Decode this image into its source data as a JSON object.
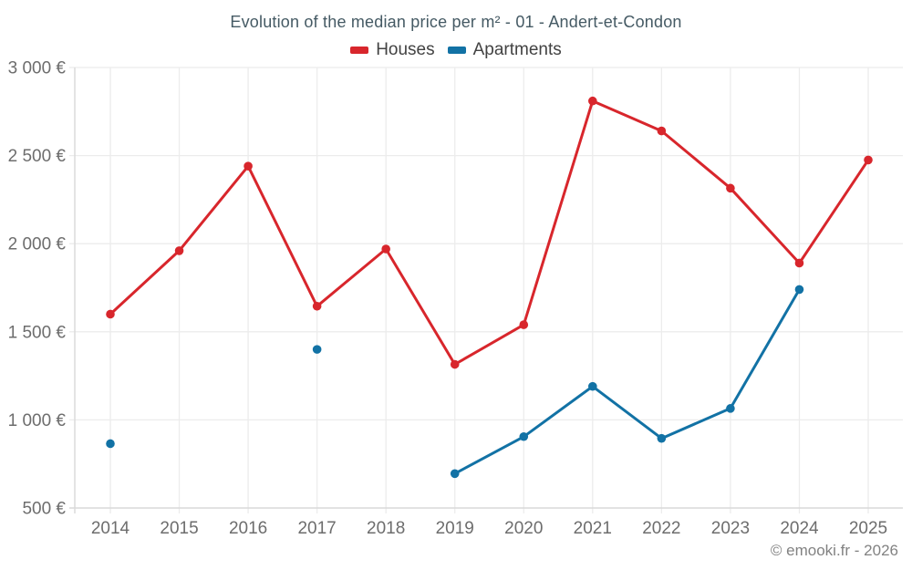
{
  "footer": {
    "credit": "© emooki.fr - 2026"
  },
  "chart_data": {
    "type": "line",
    "title": "Evolution of the median price per m² - 01 - Andert-et-Condon",
    "x": [
      2014,
      2015,
      2016,
      2017,
      2018,
      2019,
      2020,
      2021,
      2022,
      2023,
      2024,
      2025
    ],
    "series": [
      {
        "name": "Houses",
        "color": "#d8262c",
        "values": [
          1600,
          1960,
          2440,
          1645,
          1970,
          1315,
          1540,
          2810,
          2640,
          2315,
          1890,
          2475
        ]
      },
      {
        "name": "Apartments",
        "color": "#1272a5",
        "values": [
          865,
          null,
          null,
          1400,
          null,
          695,
          905,
          1190,
          895,
          1065,
          1740,
          null
        ]
      }
    ],
    "ylim": [
      500,
      3000
    ],
    "ytick_step": 500,
    "ytick_labels": [
      "500 €",
      "1 000 €",
      "1 500 €",
      "2 000 €",
      "2 500 €",
      "3 000 €"
    ],
    "ylabel": "",
    "xlabel": "",
    "grid": true,
    "legend_position": "top",
    "marker": "circle",
    "currency": "€"
  },
  "style": {
    "grid_color": "#ececec",
    "axis_color": "#d9d9d9",
    "tick_label_color": "#6d6d6d",
    "background": "#ffffff"
  }
}
